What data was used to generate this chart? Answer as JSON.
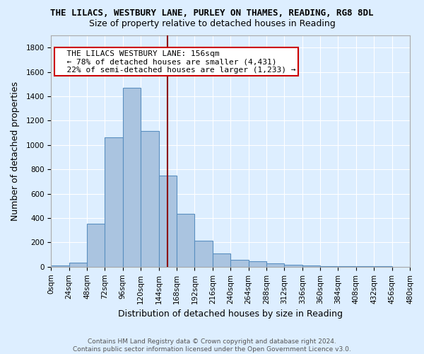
{
  "title": "THE LILACS, WESTBURY LANE, PURLEY ON THAMES, READING, RG8 8DL",
  "subtitle": "Size of property relative to detached houses in Reading",
  "xlabel": "Distribution of detached houses by size in Reading",
  "ylabel": "Number of detached properties",
  "footer_line1": "Contains HM Land Registry data © Crown copyright and database right 2024.",
  "footer_line2": "Contains public sector information licensed under the Open Government Licence v3.0.",
  "bar_edges": [
    0,
    24,
    48,
    72,
    96,
    120,
    144,
    168,
    192,
    216,
    240,
    264,
    288,
    312,
    336,
    360,
    384,
    408,
    432,
    456,
    480
  ],
  "bar_heights": [
    10,
    35,
    355,
    1060,
    1470,
    1115,
    750,
    435,
    215,
    110,
    55,
    45,
    30,
    15,
    10,
    5,
    5,
    3,
    2,
    1
  ],
  "bar_color": "#aac4e0",
  "bar_edge_color": "#5a8fc0",
  "vline_x": 156,
  "vline_color": "#8b0000",
  "annotation_text": "  THE LILACS WESTBURY LANE: 156sqm\n  ← 78% of detached houses are smaller (4,431)\n  22% of semi-detached houses are larger (1,233) →",
  "annotation_box_color": "#ffffff",
  "annotation_box_edge_color": "#cc0000",
  "ylim": [
    0,
    1900
  ],
  "yticks": [
    0,
    200,
    400,
    600,
    800,
    1000,
    1200,
    1400,
    1600,
    1800
  ],
  "xtick_labels": [
    "0sqm",
    "24sqm",
    "48sqm",
    "72sqm",
    "96sqm",
    "120sqm",
    "144sqm",
    "168sqm",
    "192sqm",
    "216sqm",
    "240sqm",
    "264sqm",
    "288sqm",
    "312sqm",
    "336sqm",
    "360sqm",
    "384sqm",
    "408sqm",
    "432sqm",
    "456sqm",
    "480sqm"
  ],
  "background_color": "#ddeeff",
  "grid_color": "#ffffff",
  "title_fontsize": 9,
  "subtitle_fontsize": 9,
  "axis_label_fontsize": 9,
  "tick_fontsize": 7.5,
  "annotation_fontsize": 8,
  "footer_fontsize": 6.5
}
